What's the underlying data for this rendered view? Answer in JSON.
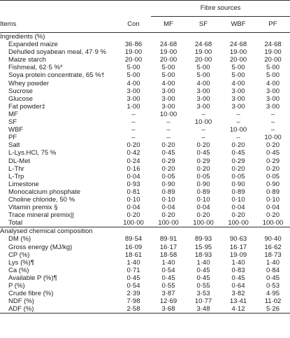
{
  "header": {
    "items_label": "Items",
    "group_label": "Fibre sources",
    "columns": [
      "Con",
      "MF",
      "SF",
      "WBF",
      "PF"
    ]
  },
  "sections": [
    {
      "title": "Ingredients (%)",
      "rows": [
        {
          "label": "Expanded maize",
          "values": [
            "36·86",
            "24·68",
            "24·68",
            "24·68",
            "24·68"
          ]
        },
        {
          "label": "Dehulled soyabean meal, 47·9 %",
          "values": [
            "19·00",
            "19·00",
            "19·00",
            "19·00",
            "19·00"
          ]
        },
        {
          "label": "Maize starch",
          "values": [
            "20·00",
            "20·00",
            "20·00",
            "20·00",
            "20·00"
          ]
        },
        {
          "label": "Fishmeal, 62·5 %*",
          "values": [
            "5·00",
            "5·00",
            "5·00",
            "5·00",
            "5·00"
          ]
        },
        {
          "label": "Soya protein concentrate, 65 %†",
          "values": [
            "5·00",
            "5·00",
            "5·00",
            "5·00",
            "5·00"
          ]
        },
        {
          "label": "Whey powder",
          "values": [
            "4·00",
            "4·00",
            "4·00",
            "4·00",
            "4·00"
          ]
        },
        {
          "label": "Sucrose",
          "values": [
            "3·00",
            "3·00",
            "3·00",
            "3·00",
            "3·00"
          ]
        },
        {
          "label": "Glucose",
          "values": [
            "3·00",
            "3·00",
            "3·00",
            "3·00",
            "3·00"
          ]
        },
        {
          "label": "Fat powder‡",
          "values": [
            "1·00",
            "3·00",
            "3·00",
            "3·00",
            "3·00"
          ]
        },
        {
          "label": "MF",
          "values": [
            "–",
            "10·00",
            "–",
            "–",
            "–"
          ]
        },
        {
          "label": "SF",
          "values": [
            "–",
            "–",
            "10·00",
            "–",
            "–"
          ]
        },
        {
          "label": "WBF",
          "values": [
            "–",
            "–",
            "–",
            "10·00",
            "–"
          ]
        },
        {
          "label": "PF",
          "values": [
            "–",
            "–",
            "–",
            "–",
            "10·00"
          ]
        },
        {
          "label": "Salt",
          "values": [
            "0·20",
            "0·20",
            "0·20",
            "0·20",
            "0·20"
          ]
        },
        {
          "label": "L-Lys.HCl, 75 %",
          "values": [
            "0·42",
            "0·45",
            "0·45",
            "0·45",
            "0·45"
          ]
        },
        {
          "label": "DL-Met",
          "values": [
            "0·24",
            "0·29",
            "0·29",
            "0·29",
            "0·29"
          ]
        },
        {
          "label": "L-Thr",
          "values": [
            "0·16",
            "0·20",
            "0·20",
            "0·20",
            "0·20"
          ]
        },
        {
          "label": "L-Trp",
          "values": [
            "0·04",
            "0·05",
            "0·05",
            "0·05",
            "0·05"
          ]
        },
        {
          "label": "Limestone",
          "values": [
            "0·93",
            "0·90",
            "0·90",
            "0·90",
            "0·90"
          ]
        },
        {
          "label": "Monocalcium phosphate",
          "values": [
            "0·81",
            "0·89",
            "0·89",
            "0·89",
            "0·89"
          ]
        },
        {
          "label": "Choline chloride, 50 %",
          "values": [
            "0·10",
            "0·10",
            "0·10",
            "0·10",
            "0·10"
          ]
        },
        {
          "label": "Vitamin premix §",
          "values": [
            "0·04",
            "0·04",
            "0·04",
            "0·04",
            "0·04"
          ]
        },
        {
          "label": "Trace mineral premix||",
          "values": [
            "0·20",
            "0·20",
            "0·20",
            "0·20",
            "0·20"
          ]
        },
        {
          "label": "Total",
          "values": [
            "100·00",
            "100·00",
            "100·00",
            "100·00",
            "100·00"
          ]
        }
      ]
    },
    {
      "title": "Analysed chemical composition",
      "rows": [
        {
          "label": "DM (%)",
          "values": [
            "89·54",
            "89·91",
            "89·93",
            "90·63",
            "90·40"
          ]
        },
        {
          "label": "Gross energy (MJ/kg)",
          "values": [
            "16·09",
            "16·17",
            "15·95",
            "16·17",
            "16·62"
          ]
        },
        {
          "label": "CP (%)",
          "values": [
            "18·61",
            "18·58",
            "18·93",
            "19·09",
            "18·73"
          ]
        },
        {
          "label": "Lys (%)¶",
          "values": [
            "1·40",
            "1·40",
            "1·40",
            "1·40",
            "1·40"
          ]
        },
        {
          "label": "Ca (%)",
          "values": [
            "0·71",
            "0·54",
            "0·45",
            "0·83",
            "0·84"
          ]
        },
        {
          "label": "Available P (%)¶",
          "values": [
            "0·45",
            "0·45",
            "0·45",
            "0·45",
            "0·45"
          ]
        },
        {
          "label": "P (%)",
          "values": [
            "0·54",
            "0·55",
            "0·55",
            "0·64",
            "0·53"
          ]
        },
        {
          "label": "Crude fibre (%)",
          "values": [
            "2·39",
            "3·87",
            "3·53",
            "3·82",
            "4·95"
          ]
        },
        {
          "label": "NDF (%)",
          "values": [
            "7·98",
            "12·69",
            "10·77",
            "13·41",
            "11·02"
          ]
        },
        {
          "label": "ADF (%)",
          "values": [
            "2·58",
            "3·68",
            "3·48",
            "4·12",
            "5·26"
          ]
        }
      ]
    }
  ]
}
